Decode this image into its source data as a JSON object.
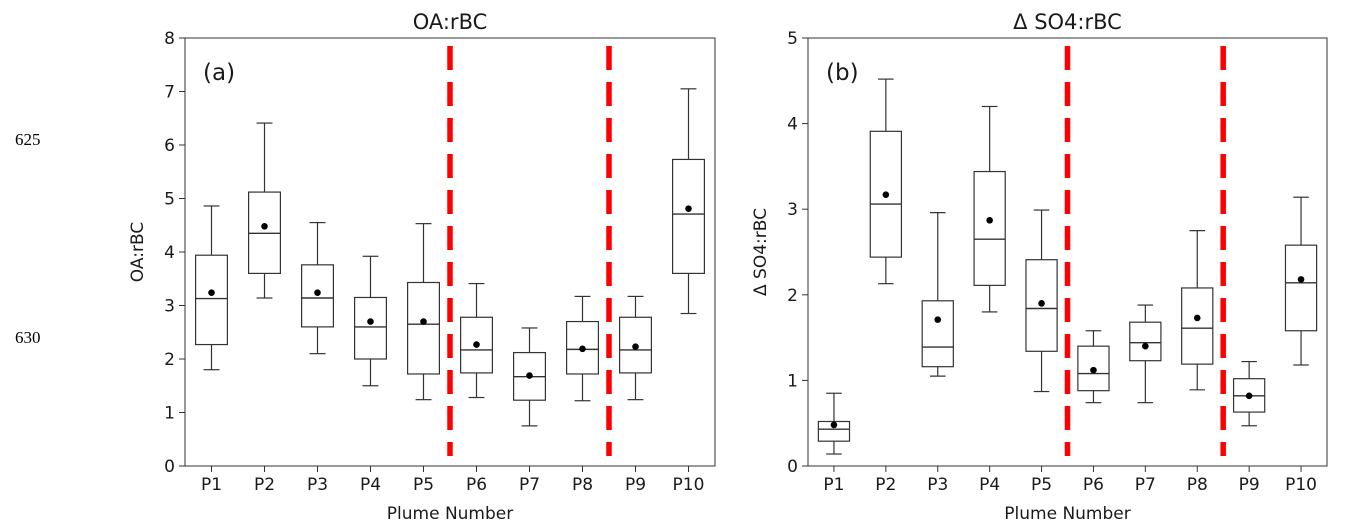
{
  "line_numbers": [
    "625",
    "630"
  ],
  "chart_data": [
    {
      "type": "box",
      "title": "OA:rBC",
      "panel_label": "(a)",
      "xlabel": "Plume Number",
      "ylabel": "OA:rBC",
      "ylim": [
        0,
        8
      ],
      "yticks": [
        "0",
        "1",
        "2",
        "3",
        "4",
        "5",
        "6",
        "7",
        "8"
      ],
      "grid": false,
      "categories": [
        "P1",
        "P2",
        "P3",
        "P4",
        "P5",
        "P6",
        "P7",
        "P8",
        "P9",
        "P10"
      ],
      "boxes": [
        {
          "whisker_low": 1.8,
          "q1": 2.27,
          "median": 3.13,
          "q3": 3.94,
          "whisker_high": 4.86,
          "mean": 3.24
        },
        {
          "whisker_low": 3.14,
          "q1": 3.6,
          "median": 4.35,
          "q3": 5.12,
          "whisker_high": 6.41,
          "mean": 4.48
        },
        {
          "whisker_low": 2.1,
          "q1": 2.6,
          "median": 3.14,
          "q3": 3.76,
          "whisker_high": 4.55,
          "mean": 3.24
        },
        {
          "whisker_low": 1.5,
          "q1": 2.0,
          "median": 2.6,
          "q3": 3.15,
          "whisker_high": 3.92,
          "mean": 2.7
        },
        {
          "whisker_low": 1.24,
          "q1": 1.72,
          "median": 2.65,
          "q3": 3.43,
          "whisker_high": 4.53,
          "mean": 2.7
        },
        {
          "whisker_low": 1.28,
          "q1": 1.74,
          "median": 2.17,
          "q3": 2.78,
          "whisker_high": 3.41,
          "mean": 2.27
        },
        {
          "whisker_low": 0.75,
          "q1": 1.23,
          "median": 1.67,
          "q3": 2.12,
          "whisker_high": 2.58,
          "mean": 1.69
        },
        {
          "whisker_low": 1.22,
          "q1": 1.72,
          "median": 2.18,
          "q3": 2.7,
          "whisker_high": 3.17,
          "mean": 2.19
        },
        {
          "whisker_low": 1.24,
          "q1": 1.74,
          "median": 2.17,
          "q3": 2.78,
          "whisker_high": 3.17,
          "mean": 2.23
        },
        {
          "whisker_low": 2.85,
          "q1": 3.6,
          "median": 4.71,
          "q3": 5.73,
          "whisker_high": 7.05,
          "mean": 4.81
        }
      ],
      "dividers_after_category": [
        5,
        8
      ],
      "divider_color": "#ff0000"
    },
    {
      "type": "box",
      "title": "Δ SO4:rBC",
      "panel_label": "(b)",
      "xlabel": "Plume Number",
      "ylabel": "Δ SO4:rBC",
      "ylim": [
        0,
        5
      ],
      "yticks": [
        "0",
        "1",
        "2",
        "3",
        "4",
        "5"
      ],
      "grid": false,
      "categories": [
        "P1",
        "P2",
        "P3",
        "P4",
        "P5",
        "P6",
        "P7",
        "P8",
        "P9",
        "P10"
      ],
      "boxes": [
        {
          "whisker_low": 0.14,
          "q1": 0.29,
          "median": 0.43,
          "q3": 0.52,
          "whisker_high": 0.85,
          "mean": 0.48
        },
        {
          "whisker_low": 2.13,
          "q1": 2.44,
          "median": 3.06,
          "q3": 3.91,
          "whisker_high": 4.52,
          "mean": 3.17
        },
        {
          "whisker_low": 1.05,
          "q1": 1.16,
          "median": 1.39,
          "q3": 1.93,
          "whisker_high": 2.96,
          "mean": 1.71
        },
        {
          "whisker_low": 1.8,
          "q1": 2.11,
          "median": 2.65,
          "q3": 3.44,
          "whisker_high": 4.2,
          "mean": 2.87
        },
        {
          "whisker_low": 0.87,
          "q1": 1.34,
          "median": 1.84,
          "q3": 2.41,
          "whisker_high": 2.99,
          "mean": 1.9
        },
        {
          "whisker_low": 0.74,
          "q1": 0.88,
          "median": 1.08,
          "q3": 1.4,
          "whisker_high": 1.58,
          "mean": 1.12
        },
        {
          "whisker_low": 0.74,
          "q1": 1.23,
          "median": 1.44,
          "q3": 1.68,
          "whisker_high": 1.88,
          "mean": 1.4
        },
        {
          "whisker_low": 0.89,
          "q1": 1.19,
          "median": 1.61,
          "q3": 2.08,
          "whisker_high": 2.75,
          "mean": 1.73
        },
        {
          "whisker_low": 0.47,
          "q1": 0.63,
          "median": 0.82,
          "q3": 1.02,
          "whisker_high": 1.22,
          "mean": 0.82
        },
        {
          "whisker_low": 1.18,
          "q1": 1.58,
          "median": 2.14,
          "q3": 2.58,
          "whisker_high": 3.14,
          "mean": 2.18
        }
      ],
      "dividers_after_category": [
        5,
        8
      ],
      "divider_color": "#ff0000"
    }
  ]
}
